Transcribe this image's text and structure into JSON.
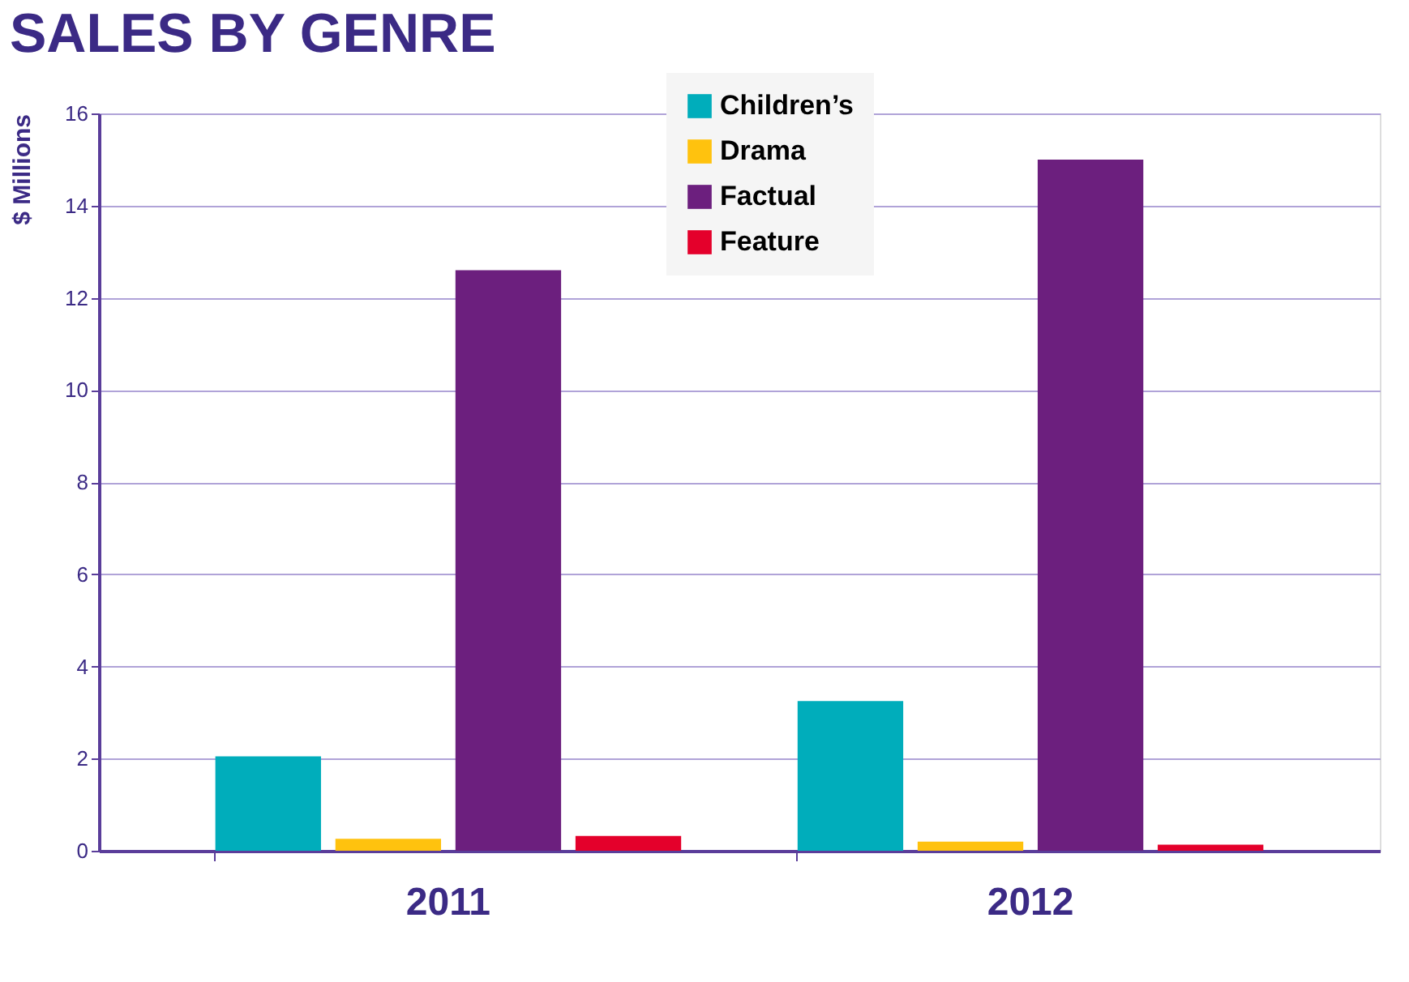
{
  "chart_data": {
    "type": "bar",
    "title": "SALES BY GENRE",
    "ylabel": "$ Millions",
    "categories": [
      "2011",
      "2012"
    ],
    "series": [
      {
        "name": "Children’s",
        "color": "#00adbb",
        "values": [
          2.05,
          3.25
        ]
      },
      {
        "name": "Drama",
        "color": "#ffc20e",
        "values": [
          0.26,
          0.2
        ]
      },
      {
        "name": "Factual",
        "color": "#6c1f7e",
        "values": [
          12.6,
          15.0
        ]
      },
      {
        "name": "Feature",
        "color": "#e4002b",
        "values": [
          0.32,
          0.13
        ]
      }
    ],
    "ylim": [
      0,
      16
    ],
    "yticks": [
      0,
      2,
      4,
      6,
      8,
      10,
      12,
      14,
      16
    ],
    "grid": "y",
    "legend": "top"
  }
}
